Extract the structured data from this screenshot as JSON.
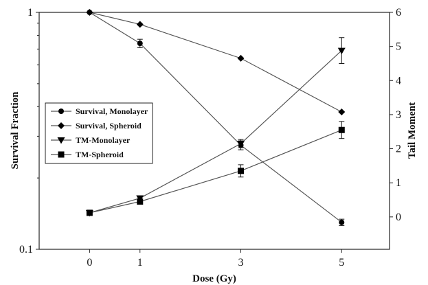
{
  "chart_data": {
    "type": "line",
    "xlabel": "Dose (Gy)",
    "ylabel_left": "Survival Fraction",
    "ylabel_right": "Tail Moment",
    "x_ticks": [
      "0",
      "1",
      "3",
      "5"
    ],
    "x_values": [
      0,
      1,
      3,
      5
    ],
    "xlim": [
      -1.0,
      5.95
    ],
    "y_left": {
      "scale": "log",
      "lim": [
        0.1,
        1
      ],
      "ticks": [
        {
          "v": 1,
          "label": "1"
        },
        {
          "v": 0.1,
          "label": "0.1"
        }
      ]
    },
    "y_right": {
      "scale": "linear",
      "lim": [
        -0.95,
        6
      ],
      "ticks": [
        {
          "v": 0,
          "label": "0"
        },
        {
          "v": 1,
          "label": "1"
        },
        {
          "v": 2,
          "label": "2"
        },
        {
          "v": 3,
          "label": "3"
        },
        {
          "v": 4,
          "label": "4"
        },
        {
          "v": 5,
          "label": "5"
        },
        {
          "v": 6,
          "label": "6"
        }
      ]
    },
    "grid": false,
    "legend_position": "center-left",
    "series": [
      {
        "name": "Survival, Monolayer",
        "axis": "left",
        "marker": "circle",
        "x": [
          0,
          1,
          3,
          5
        ],
        "y": [
          1.0,
          0.74,
          0.275,
          0.13
        ],
        "err": [
          0,
          0.03,
          0.012,
          0.004
        ]
      },
      {
        "name": "Survival, Spheroid",
        "axis": "left",
        "marker": "diamond",
        "x": [
          0,
          1,
          3,
          5
        ],
        "y": [
          1.0,
          0.89,
          0.64,
          0.38
        ],
        "err": [
          0,
          0,
          0,
          0
        ]
      },
      {
        "name": "TM-Monolayer",
        "axis": "right",
        "marker": "triangle-down",
        "x": [
          0,
          1,
          3,
          5
        ],
        "y": [
          0.12,
          0.55,
          2.15,
          4.88
        ],
        "err": [
          0,
          0.07,
          0.12,
          0.38
        ]
      },
      {
        "name": "TM-Spheroid",
        "axis": "right",
        "marker": "square",
        "x": [
          0,
          1,
          3,
          5
        ],
        "y": [
          0.12,
          0.45,
          1.35,
          2.55
        ],
        "err": [
          0,
          0.07,
          0.18,
          0.25
        ]
      }
    ],
    "colors": {
      "line": "#555555",
      "marker": "#000000"
    }
  }
}
